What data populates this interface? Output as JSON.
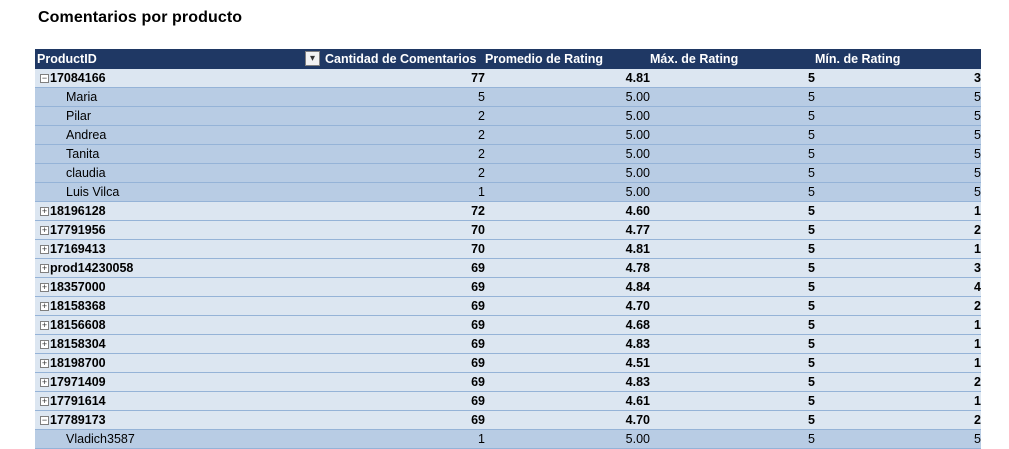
{
  "title": "Comentarios por producto",
  "headers": {
    "product_id": "ProductID",
    "count": "Cantidad de Comentarios",
    "avg": "Promedio de Rating",
    "max": "Máx. de Rating",
    "min": "Mín. de Rating"
  },
  "rows": [
    {
      "type": "product",
      "label": "17084166",
      "expanded": true,
      "count": "77",
      "avg": "4.81",
      "max": "5",
      "min": "3"
    },
    {
      "type": "user",
      "label": "Maria",
      "count": "5",
      "avg": "5.00",
      "max": "5",
      "min": "5"
    },
    {
      "type": "user",
      "label": "Pilar",
      "count": "2",
      "avg": "5.00",
      "max": "5",
      "min": "5"
    },
    {
      "type": "user",
      "label": "Andrea",
      "count": "2",
      "avg": "5.00",
      "max": "5",
      "min": "5"
    },
    {
      "type": "user",
      "label": "Tanita",
      "count": "2",
      "avg": "5.00",
      "max": "5",
      "min": "5"
    },
    {
      "type": "user",
      "label": "claudia",
      "count": "2",
      "avg": "5.00",
      "max": "5",
      "min": "5"
    },
    {
      "type": "user",
      "label": "Luis Vilca",
      "count": "1",
      "avg": "5.00",
      "max": "5",
      "min": "5"
    },
    {
      "type": "product",
      "label": "18196128",
      "expanded": false,
      "count": "72",
      "avg": "4.60",
      "max": "5",
      "min": "1"
    },
    {
      "type": "product",
      "label": "17791956",
      "expanded": false,
      "count": "70",
      "avg": "4.77",
      "max": "5",
      "min": "2"
    },
    {
      "type": "product",
      "label": "17169413",
      "expanded": false,
      "count": "70",
      "avg": "4.81",
      "max": "5",
      "min": "1"
    },
    {
      "type": "product",
      "label": "prod14230058",
      "expanded": false,
      "count": "69",
      "avg": "4.78",
      "max": "5",
      "min": "3"
    },
    {
      "type": "product",
      "label": "18357000",
      "expanded": false,
      "count": "69",
      "avg": "4.84",
      "max": "5",
      "min": "4"
    },
    {
      "type": "product",
      "label": "18158368",
      "expanded": false,
      "count": "69",
      "avg": "4.70",
      "max": "5",
      "min": "2"
    },
    {
      "type": "product",
      "label": "18156608",
      "expanded": false,
      "count": "69",
      "avg": "4.68",
      "max": "5",
      "min": "1"
    },
    {
      "type": "product",
      "label": "18158304",
      "expanded": false,
      "count": "69",
      "avg": "4.83",
      "max": "5",
      "min": "1"
    },
    {
      "type": "product",
      "label": "18198700",
      "expanded": false,
      "count": "69",
      "avg": "4.51",
      "max": "5",
      "min": "1"
    },
    {
      "type": "product",
      "label": "17971409",
      "expanded": false,
      "count": "69",
      "avg": "4.83",
      "max": "5",
      "min": "2"
    },
    {
      "type": "product",
      "label": "17791614",
      "expanded": false,
      "count": "69",
      "avg": "4.61",
      "max": "5",
      "min": "1"
    },
    {
      "type": "product",
      "label": "17789173",
      "expanded": true,
      "count": "69",
      "avg": "4.70",
      "max": "5",
      "min": "2"
    },
    {
      "type": "user",
      "label": "Vladich3587",
      "count": "1",
      "avg": "5.00",
      "max": "5",
      "min": "5"
    }
  ]
}
